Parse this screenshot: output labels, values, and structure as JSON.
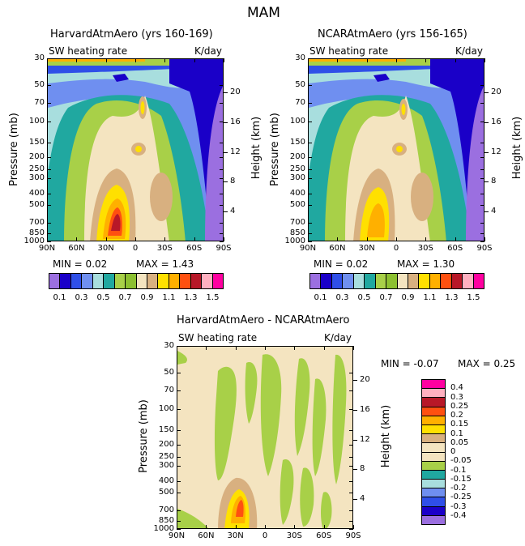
{
  "page_title": "MAM",
  "panels": {
    "a": {
      "title": "HarvardAtmAero (yrs 160-169)",
      "left_label": "SW heating rate",
      "right_label": "K/day",
      "min_text": "MIN =    0.02",
      "max_text": "MAX =    1.43"
    },
    "b": {
      "title": "NCARAtmAero (yrs 156-165)",
      "left_label": "SW heating rate",
      "right_label": "K/day",
      "min_text": "MIN =    0.02",
      "max_text": "MAX =    1.30"
    },
    "c": {
      "title": "HarvardAtmAero - NCARAtmAero",
      "left_label": "SW heating rate",
      "right_label": "K/day",
      "min_text": "MIN =   -0.07",
      "max_text": "MAX =    0.25"
    }
  },
  "axes": {
    "ylabel": "Pressure (mb)",
    "y2label": "Height (km)",
    "pressure_ticks": [
      "30",
      "50",
      "70",
      "100",
      "150",
      "200",
      "250",
      "300",
      "400",
      "500",
      "700",
      "850",
      "1000"
    ],
    "height_ticks": [
      "20",
      "16",
      "12",
      "8",
      "4"
    ],
    "lat_ticks": [
      "90N",
      "60N",
      "30N",
      "0",
      "30S",
      "60S",
      "90S"
    ]
  },
  "colorbar_top": {
    "labels": [
      "0.1",
      "0.3",
      "0.5",
      "0.7",
      "0.9",
      "1.1",
      "1.3",
      "1.5"
    ],
    "colors": [
      "#9b6fe0",
      "#1a00c8",
      "#2f4fe8",
      "#6f8ff0",
      "#a8dede",
      "#20a8a0",
      "#a8d048",
      "#8cc030",
      "#f4e4c0",
      "#d8b080",
      "#ffe000",
      "#ffb000",
      "#ff5010",
      "#b81828",
      "#ffb0c0",
      "#ff00a0"
    ]
  },
  "colorbar_diff": {
    "labels": [
      "0.4",
      "0.3",
      "0.25",
      "0.2",
      "0.15",
      "0.1",
      "0.05",
      "0",
      "-0.05",
      "-0.1",
      "-0.15",
      "-0.2",
      "-0.25",
      "-0.3",
      "-0.4"
    ],
    "colors": [
      "#ff00a0",
      "#ffb0c0",
      "#b81828",
      "#ff5010",
      "#ffb000",
      "#ffe000",
      "#d8b080",
      "#f4e4c0",
      "#f4e4c0",
      "#a8d048",
      "#20a8a0",
      "#a8dede",
      "#6f8ff0",
      "#2f4fe8",
      "#1a00c8",
      "#9b6fe0"
    ]
  },
  "chart_data": [
    {
      "type": "heatmap",
      "title": "HarvardAtmAero (yrs 160-169)",
      "xlabel": "",
      "ylabel": "Pressure (mb)",
      "y2label": "Height (km)",
      "x_range": [
        "90N",
        "90S"
      ],
      "y_range": [
        1000,
        30
      ],
      "min": 0.02,
      "max": 1.43,
      "units": "K/day"
    },
    {
      "type": "heatmap",
      "title": "NCARAtmAero (yrs 156-165)",
      "xlabel": "",
      "ylabel": "Pressure (mb)",
      "y2label": "Height (km)",
      "x_range": [
        "90N",
        "90S"
      ],
      "y_range": [
        1000,
        30
      ],
      "min": 0.02,
      "max": 1.3,
      "units": "K/day"
    },
    {
      "type": "heatmap",
      "title": "HarvardAtmAero - NCARAtmAero",
      "xlabel": "",
      "ylabel": "Pressure (mb)",
      "y2label": "Height (km)",
      "x_range": [
        "90N",
        "90S"
      ],
      "y_range": [
        1000,
        30
      ],
      "min": -0.07,
      "max": 0.25,
      "units": "K/day"
    }
  ]
}
